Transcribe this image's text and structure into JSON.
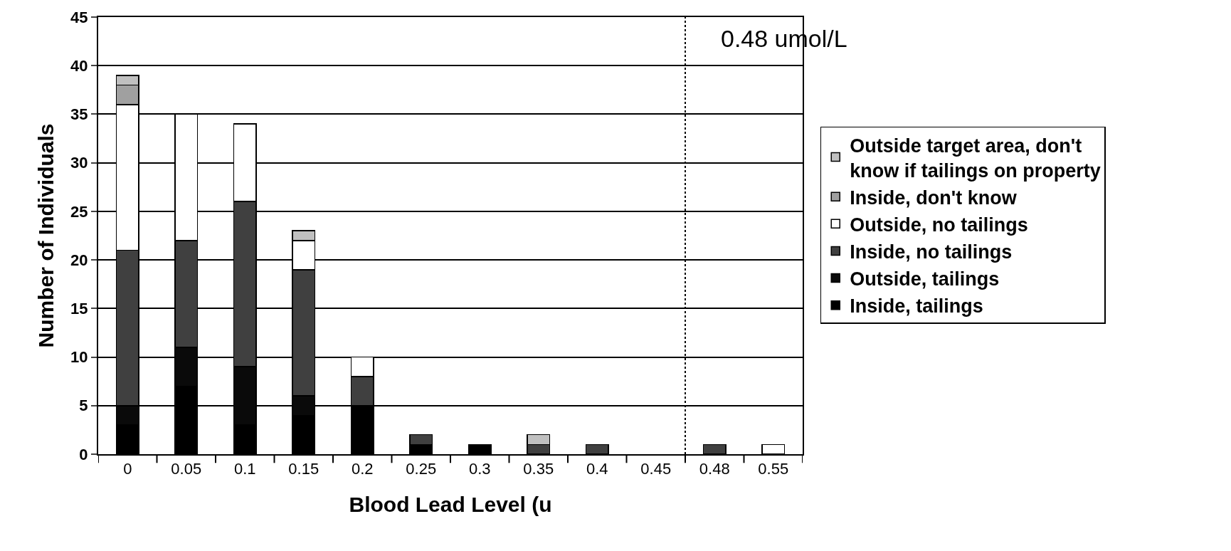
{
  "chart_data": {
    "type": "bar",
    "stacked": true,
    "xlabel": "Blood Lead Level (u",
    "ylabel": "Number of Individuals",
    "categories": [
      "0",
      "0.05",
      "0.1",
      "0.15",
      "0.2",
      "0.25",
      "0.3",
      "0.35",
      "0.4",
      "0.45",
      "0.48",
      "0.55"
    ],
    "series": [
      {
        "name": "Inside, tailings",
        "color": "#000000",
        "values": [
          3,
          7,
          3,
          4,
          5,
          1,
          1,
          0,
          0,
          0,
          0,
          0
        ]
      },
      {
        "name": "Outside, tailings",
        "color": "#0a0a0a",
        "values": [
          2,
          4,
          6,
          2,
          0,
          0,
          0,
          0,
          0,
          0,
          0,
          0
        ]
      },
      {
        "name": "Inside, no tailings",
        "color": "#404040",
        "values": [
          16,
          11,
          17,
          13,
          3,
          1,
          0,
          1,
          1,
          0,
          1,
          0
        ]
      },
      {
        "name": "Outside, no tailings",
        "color": "#ffffff",
        "values": [
          15,
          13,
          8,
          3,
          2,
          0,
          0,
          0,
          0,
          0,
          0,
          1
        ]
      },
      {
        "name": "Inside, don't know",
        "color": "#a0a0a0",
        "values": [
          2,
          0,
          0,
          0,
          0,
          0,
          0,
          0,
          0,
          0,
          0,
          0
        ]
      },
      {
        "name": "Outside target area, don't know if tailings on property",
        "color": "#c0c0c0",
        "values": [
          1,
          0,
          0,
          1,
          0,
          0,
          0,
          1,
          0,
          0,
          0,
          0
        ]
      }
    ],
    "ylim": [
      0,
      45
    ],
    "yticks": [
      0,
      5,
      10,
      15,
      20,
      25,
      30,
      35,
      40,
      45
    ],
    "grid": "y",
    "legend": "right",
    "ref_lines": [
      {
        "axis": "x",
        "value": "0.48",
        "label": "0.48 umol/L",
        "line_style": "dotted",
        "color": "#000000"
      }
    ]
  }
}
